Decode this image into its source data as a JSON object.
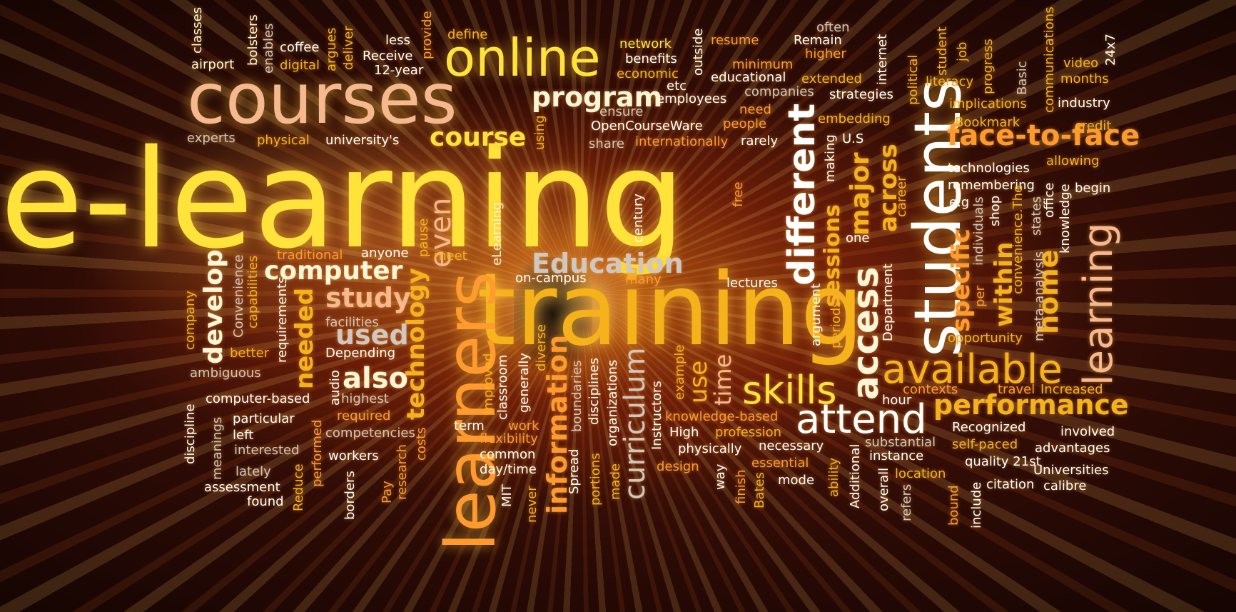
{
  "palette": {
    "yellow": "#ffe23a",
    "gold": "#f6b21a",
    "orange": "#ff9a2e",
    "peach": "#f6b88e",
    "cream": "#fff6d8",
    "white": "#ffffff",
    "grey": "#cfc7c2",
    "red": "#ff5a3a"
  },
  "words": [
    {
      "id": "e-learning",
      "text": "e-learning"
    },
    {
      "id": "training",
      "text": "training"
    },
    {
      "id": "courses",
      "text": "courses"
    },
    {
      "id": "online",
      "text": "online"
    },
    {
      "id": "learners",
      "text": "learners"
    },
    {
      "id": "students",
      "text": "students"
    },
    {
      "id": "available",
      "text": "available"
    },
    {
      "id": "skills",
      "text": "skills"
    },
    {
      "id": "attend",
      "text": "attend"
    },
    {
      "id": "program",
      "text": "program"
    },
    {
      "id": "course",
      "text": "course"
    },
    {
      "id": "computer",
      "text": "computer"
    },
    {
      "id": "education",
      "text": "Education"
    },
    {
      "id": "different",
      "text": "different"
    },
    {
      "id": "access",
      "text": "access"
    },
    {
      "id": "face-to-face",
      "text": "face-to-face"
    },
    {
      "id": "performance",
      "text": "performance"
    },
    {
      "id": "learning",
      "text": "learning"
    },
    {
      "id": "also",
      "text": "also"
    },
    {
      "id": "used",
      "text": "used"
    },
    {
      "id": "study",
      "text": "study"
    },
    {
      "id": "technology",
      "text": "technology"
    },
    {
      "id": "curriculum",
      "text": "curriculum"
    },
    {
      "id": "information",
      "text": "information"
    },
    {
      "id": "sessions",
      "text": "sessions"
    },
    {
      "id": "major",
      "text": "major"
    },
    {
      "id": "across",
      "text": "across"
    },
    {
      "id": "specific",
      "text": "specific"
    },
    {
      "id": "within",
      "text": "within"
    },
    {
      "id": "home",
      "text": "home"
    },
    {
      "id": "develop",
      "text": "develop"
    },
    {
      "id": "needed",
      "text": "needed"
    },
    {
      "id": "time",
      "text": "time"
    },
    {
      "id": "use",
      "text": "use"
    },
    {
      "id": "even",
      "text": "even"
    },
    {
      "id": "classes",
      "text": "classes"
    },
    {
      "id": "airport",
      "text": "airport"
    },
    {
      "id": "bolsters",
      "text": "bolsters"
    },
    {
      "id": "enables",
      "text": "enables"
    },
    {
      "id": "coffee",
      "text": "coffee"
    },
    {
      "id": "digital",
      "text": "digital"
    },
    {
      "id": "argues",
      "text": "argues"
    },
    {
      "id": "deliver",
      "text": "deliver"
    },
    {
      "id": "less",
      "text": "less"
    },
    {
      "id": "receive",
      "text": "Receive"
    },
    {
      "id": "12-year",
      "text": "12-year"
    },
    {
      "id": "provide",
      "text": "provide"
    },
    {
      "id": "define",
      "text": "define"
    },
    {
      "id": "network",
      "text": "network"
    },
    {
      "id": "benefits",
      "text": "benefits"
    },
    {
      "id": "economic",
      "text": "economic"
    },
    {
      "id": "outside",
      "text": "outside"
    },
    {
      "id": "resume",
      "text": "resume"
    },
    {
      "id": "minimum",
      "text": "minimum"
    },
    {
      "id": "educational",
      "text": "educational"
    },
    {
      "id": "often",
      "text": "often"
    },
    {
      "id": "remain",
      "text": "Remain"
    },
    {
      "id": "higher",
      "text": "higher"
    },
    {
      "id": "extended",
      "text": "extended"
    },
    {
      "id": "internet",
      "text": "internet"
    },
    {
      "id": "student",
      "text": "student"
    },
    {
      "id": "job",
      "text": "job"
    },
    {
      "id": "progress",
      "text": "progress"
    },
    {
      "id": "communications",
      "text": "communications"
    },
    {
      "id": "video",
      "text": "video"
    },
    {
      "id": "24x7",
      "text": "24x7"
    },
    {
      "id": "political",
      "text": "political"
    },
    {
      "id": "literacy",
      "text": "literacy"
    },
    {
      "id": "basic",
      "text": "Basic"
    },
    {
      "id": "months",
      "text": "months"
    },
    {
      "id": "etc",
      "text": "etc"
    },
    {
      "id": "employees",
      "text": "employees"
    },
    {
      "id": "companies",
      "text": "companies"
    },
    {
      "id": "strategies",
      "text": "strategies"
    },
    {
      "id": "implications",
      "text": "implications"
    },
    {
      "id": "industry",
      "text": "industry"
    },
    {
      "id": "ensure",
      "text": "ensure"
    },
    {
      "id": "need",
      "text": "need"
    },
    {
      "id": "embedding",
      "text": "embedding"
    },
    {
      "id": "experts",
      "text": "experts"
    },
    {
      "id": "physical",
      "text": "physical"
    },
    {
      "id": "universitys",
      "text": "university's"
    },
    {
      "id": "using",
      "text": "using"
    },
    {
      "id": "opencourseware",
      "text": "OpenCourseWare"
    },
    {
      "id": "people",
      "text": "people"
    },
    {
      "id": "bookmark",
      "text": "Bookmark"
    },
    {
      "id": "credit",
      "text": "credit"
    },
    {
      "id": "share",
      "text": "share"
    },
    {
      "id": "internationally",
      "text": "internationally"
    },
    {
      "id": "rarely",
      "text": "rarely"
    },
    {
      "id": "us",
      "text": "U.S"
    },
    {
      "id": "making",
      "text": "making"
    },
    {
      "id": "allowing",
      "text": "allowing"
    },
    {
      "id": "technologies",
      "text": "technologies"
    },
    {
      "id": "remembering",
      "text": "remembering"
    },
    {
      "id": "begin",
      "text": "begin"
    },
    {
      "id": "free",
      "text": "free"
    },
    {
      "id": "career",
      "text": "career"
    },
    {
      "id": "eg",
      "text": "e.g"
    },
    {
      "id": "shop",
      "text": "shop"
    },
    {
      "id": "individuals",
      "text": "individuals"
    },
    {
      "id": "states",
      "text": "states"
    },
    {
      "id": "office",
      "text": "office"
    },
    {
      "id": "knowledge",
      "text": "knowledge"
    },
    {
      "id": "century",
      "text": "century"
    },
    {
      "id": "one",
      "text": "one"
    },
    {
      "id": "convenience-the",
      "text": "convenience.The"
    },
    {
      "id": "meta-analysis",
      "text": "meta-analysis"
    },
    {
      "id": "per",
      "text": "per"
    },
    {
      "id": "elearning",
      "text": "eLearning"
    },
    {
      "id": "pause",
      "text": "pause"
    },
    {
      "id": "meet",
      "text": "meet"
    },
    {
      "id": "traditional",
      "text": "traditional"
    },
    {
      "id": "anyone",
      "text": "anyone"
    },
    {
      "id": "on-campus",
      "text": "on-campus"
    },
    {
      "id": "many",
      "text": "many"
    },
    {
      "id": "lectures",
      "text": "lectures"
    },
    {
      "id": "convenience",
      "text": "Convenience"
    },
    {
      "id": "capabilities",
      "text": "capabilities"
    },
    {
      "id": "company",
      "text": "company"
    },
    {
      "id": "requirements",
      "text": "requirements"
    },
    {
      "id": "facilities",
      "text": "facilities"
    },
    {
      "id": "argument",
      "text": "argument"
    },
    {
      "id": "periods",
      "text": "periods"
    },
    {
      "id": "department",
      "text": "Department"
    },
    {
      "id": "opportunity",
      "text": "opportunity"
    },
    {
      "id": "better",
      "text": "better"
    },
    {
      "id": "depending",
      "text": "Depending"
    },
    {
      "id": "ambiguous",
      "text": "ambiguous"
    },
    {
      "id": "improved",
      "text": "Improved"
    },
    {
      "id": "diverse",
      "text": "diverse"
    },
    {
      "id": "generally",
      "text": "generally"
    },
    {
      "id": "classroom",
      "text": "classroom"
    },
    {
      "id": "boundaries",
      "text": "boundaries"
    },
    {
      "id": "disciplines",
      "text": "disciplines"
    },
    {
      "id": "organizations",
      "text": "organizations"
    },
    {
      "id": "instructors",
      "text": "Instructors"
    },
    {
      "id": "example",
      "text": "example"
    },
    {
      "id": "audio",
      "text": "audio"
    },
    {
      "id": "computer-based",
      "text": "computer-based"
    },
    {
      "id": "highest",
      "text": "highest"
    },
    {
      "id": "contexts",
      "text": "contexts"
    },
    {
      "id": "travel",
      "text": "travel"
    },
    {
      "id": "increased",
      "text": "Increased"
    },
    {
      "id": "hour",
      "text": "hour"
    },
    {
      "id": "discipline",
      "text": "discipline"
    },
    {
      "id": "particular",
      "text": "particular"
    },
    {
      "id": "required",
      "text": "required"
    },
    {
      "id": "knowledge-based",
      "text": "knowledge-based"
    },
    {
      "id": "left",
      "text": "left"
    },
    {
      "id": "term",
      "text": "term"
    },
    {
      "id": "work",
      "text": "work"
    },
    {
      "id": "meanings",
      "text": "meanings"
    },
    {
      "id": "competencies",
      "text": "competencies"
    },
    {
      "id": "flexibility",
      "text": "flexibility"
    },
    {
      "id": "high",
      "text": "High"
    },
    {
      "id": "profession",
      "text": "profession"
    },
    {
      "id": "recognized",
      "text": "Recognized"
    },
    {
      "id": "involved",
      "text": "involved"
    },
    {
      "id": "interested",
      "text": "interested"
    },
    {
      "id": "performed",
      "text": "performed"
    },
    {
      "id": "costs",
      "text": "costs"
    },
    {
      "id": "physically",
      "text": "physically"
    },
    {
      "id": "necessary",
      "text": "necessary"
    },
    {
      "id": "substantial",
      "text": "substantial"
    },
    {
      "id": "self-paced",
      "text": "self-paced"
    },
    {
      "id": "advantages",
      "text": "advantages"
    },
    {
      "id": "workers",
      "text": "workers"
    },
    {
      "id": "common",
      "text": "common"
    },
    {
      "id": "instance",
      "text": "instance"
    },
    {
      "id": "quality-21st",
      "text": "quality 21st"
    },
    {
      "id": "lately",
      "text": "lately"
    },
    {
      "id": "research",
      "text": "research"
    },
    {
      "id": "daytime",
      "text": "day/time"
    },
    {
      "id": "design",
      "text": "design"
    },
    {
      "id": "essential",
      "text": "essential"
    },
    {
      "id": "location",
      "text": "location"
    },
    {
      "id": "universities",
      "text": "Universities"
    },
    {
      "id": "assessment",
      "text": "assessment"
    },
    {
      "id": "reduce",
      "text": "Reduce"
    },
    {
      "id": "borders",
      "text": "borders"
    },
    {
      "id": "pay",
      "text": "Pay"
    },
    {
      "id": "mit",
      "text": "MIT"
    },
    {
      "id": "never",
      "text": "never"
    },
    {
      "id": "spread",
      "text": "Spread"
    },
    {
      "id": "portions",
      "text": "portions"
    },
    {
      "id": "made",
      "text": "made"
    },
    {
      "id": "way",
      "text": "way"
    },
    {
      "id": "finish",
      "text": "finish"
    },
    {
      "id": "bates",
      "text": "Bates"
    },
    {
      "id": "mode",
      "text": "mode"
    },
    {
      "id": "ability",
      "text": "ability"
    },
    {
      "id": "additional",
      "text": "Additional"
    },
    {
      "id": "overall",
      "text": "overall"
    },
    {
      "id": "refers",
      "text": "refers"
    },
    {
      "id": "bound",
      "text": "bound"
    },
    {
      "id": "include",
      "text": "include"
    },
    {
      "id": "citation",
      "text": "citation"
    },
    {
      "id": "calibre",
      "text": "calibre"
    },
    {
      "id": "found",
      "text": "found"
    }
  ]
}
